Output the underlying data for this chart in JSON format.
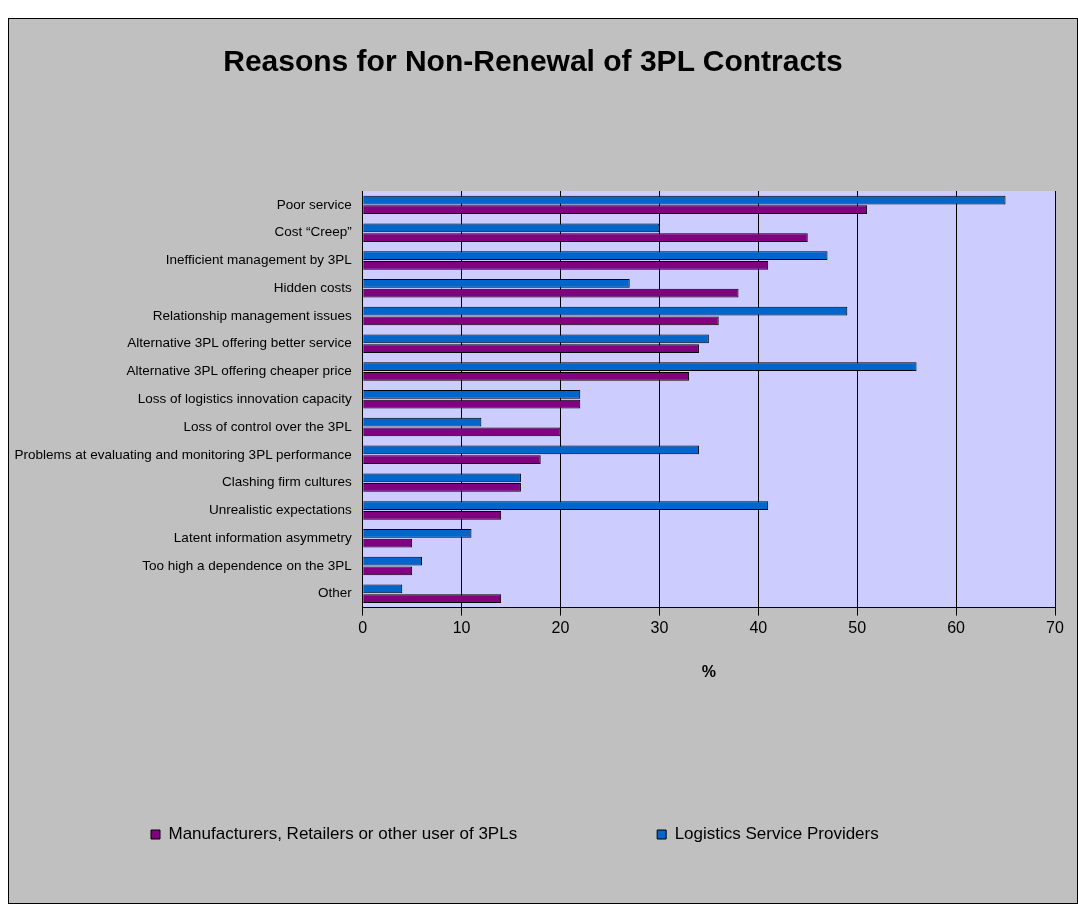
{
  "chart_data": {
    "type": "bar",
    "orientation": "horizontal",
    "title": "Reasons for Non-Renewal of 3PL Contracts",
    "xlabel": "%",
    "categories": [
      "Poor service",
      "Cost “Creep”",
      "Inefficient management by 3PL",
      "Hidden costs",
      "Relationship management issues",
      "Alternative 3PL offering better service",
      "Alternative 3PL offering cheaper price",
      "Loss of logistics innovation capacity",
      "Loss of control over the 3PL",
      "Problems at evaluating and monitoring 3PL performance",
      "Clashing firm cultures",
      "Unrealistic expectations",
      "Latent information asymmetry",
      "Too high a dependence on the 3PL",
      "Other"
    ],
    "series": [
      {
        "name": "Manufacturers, Retailers or other user of 3PLs",
        "color": "#800080",
        "values": [
          51,
          45,
          41,
          38,
          36,
          34,
          33,
          22,
          20,
          18,
          16,
          14,
          5,
          5,
          14
        ]
      },
      {
        "name": "Logistics Service Providers",
        "color": "#0066cc",
        "values": [
          65,
          30,
          47,
          27,
          49,
          35,
          56,
          22,
          12,
          34,
          16,
          41,
          11,
          6,
          4
        ]
      }
    ],
    "xlim": [
      0,
      70
    ],
    "xticks": [
      0,
      10,
      20,
      30,
      40,
      50,
      60,
      70
    ],
    "grid": "x",
    "legend": "bottom"
  }
}
